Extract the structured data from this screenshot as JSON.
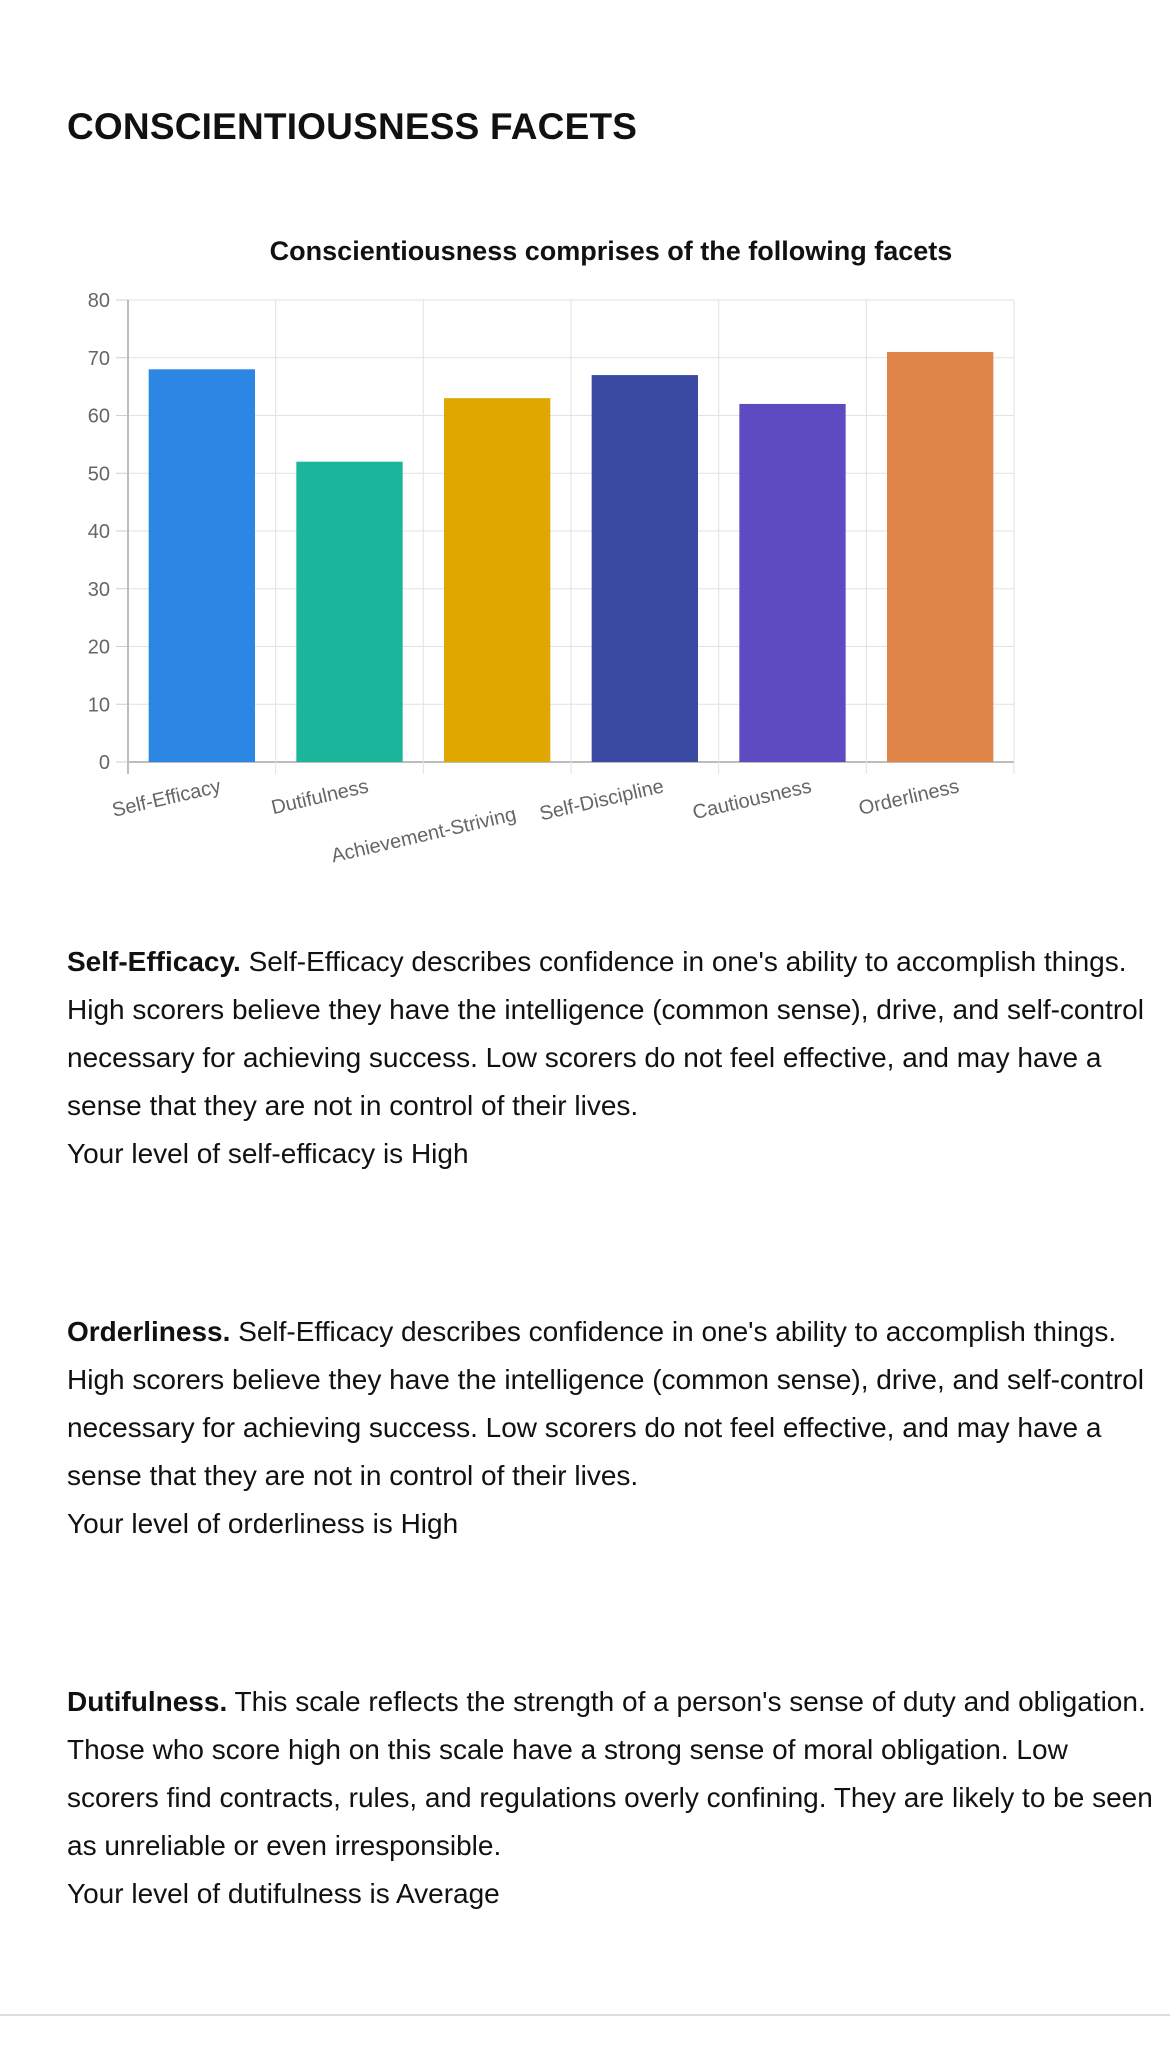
{
  "page": {
    "title": "CONSCIENTIOUSNESS FACETS"
  },
  "chart_data": {
    "type": "bar",
    "title": "Conscientiousness comprises of the following facets",
    "xlabel": "",
    "ylabel": "",
    "categories": [
      "Self-Efficacy",
      "Dutifulness",
      "Achievement-Striving",
      "Self-Discipline",
      "Cautiousness",
      "Orderliness"
    ],
    "values": [
      68,
      52,
      63,
      67,
      62,
      71
    ],
    "colors": [
      "#2b87e3",
      "#1ab59a",
      "#dfa700",
      "#3a4aa3",
      "#5f4bc1",
      "#df854a"
    ],
    "ylim": [
      0,
      80
    ],
    "yticks": [
      0,
      10,
      20,
      30,
      40,
      50,
      60,
      70,
      80
    ],
    "grid": true,
    "legend": "none"
  },
  "facets": [
    {
      "name": "Self-Efficacy.",
      "description": "Self-Efficacy describes confidence in one's ability to accomplish things. High scorers believe they have the intelligence (common sense), drive, and self-control necessary for achieving success. Low scorers do not feel effective, and may have a sense that they are not in control of their lives.",
      "level": "Your level of self-efficacy is High"
    },
    {
      "name": "Orderliness.",
      "description": "Self-Efficacy describes confidence in one's ability to accomplish things. High scorers believe they have the intelligence (common sense), drive, and self-control necessary for achieving success. Low scorers do not feel effective, and may have a sense that they are not in control of their lives.",
      "level": "Your level of orderliness is High"
    },
    {
      "name": "Dutifulness.",
      "description": "This scale reflects the strength of a person's sense of duty and obligation. Those who score high on this scale have a strong sense of moral obligation. Low scorers find contracts, rules, and regulations overly confining. They are likely to be seen as unreliable or even irresponsible.",
      "level": "Your level of dutifulness is Average"
    }
  ]
}
